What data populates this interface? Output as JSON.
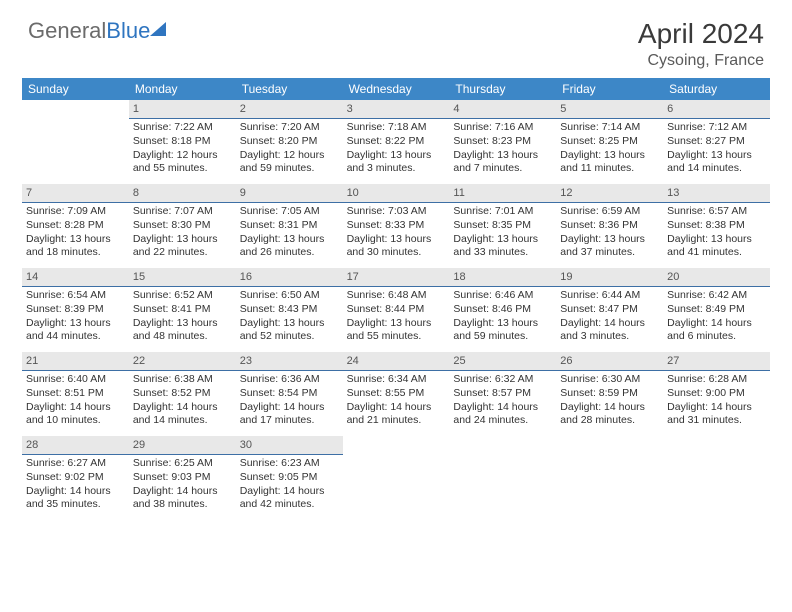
{
  "brand": {
    "part1": "General",
    "part2": "Blue"
  },
  "title": "April 2024",
  "location": "Cysoing, France",
  "colors": {
    "header_bg": "#3d87c7",
    "daynum_bg": "#e8e8e8",
    "daynum_border": "#3d6fa5",
    "text": "#333333",
    "brand_gray": "#6b6b6b",
    "brand_blue": "#2f75c0"
  },
  "weekdays": [
    "Sunday",
    "Monday",
    "Tuesday",
    "Wednesday",
    "Thursday",
    "Friday",
    "Saturday"
  ],
  "weeks": [
    [
      null,
      {
        "n": "1",
        "sr": "Sunrise: 7:22 AM",
        "ss": "Sunset: 8:18 PM",
        "d1": "Daylight: 12 hours",
        "d2": "and 55 minutes."
      },
      {
        "n": "2",
        "sr": "Sunrise: 7:20 AM",
        "ss": "Sunset: 8:20 PM",
        "d1": "Daylight: 12 hours",
        "d2": "and 59 minutes."
      },
      {
        "n": "3",
        "sr": "Sunrise: 7:18 AM",
        "ss": "Sunset: 8:22 PM",
        "d1": "Daylight: 13 hours",
        "d2": "and 3 minutes."
      },
      {
        "n": "4",
        "sr": "Sunrise: 7:16 AM",
        "ss": "Sunset: 8:23 PM",
        "d1": "Daylight: 13 hours",
        "d2": "and 7 minutes."
      },
      {
        "n": "5",
        "sr": "Sunrise: 7:14 AM",
        "ss": "Sunset: 8:25 PM",
        "d1": "Daylight: 13 hours",
        "d2": "and 11 minutes."
      },
      {
        "n": "6",
        "sr": "Sunrise: 7:12 AM",
        "ss": "Sunset: 8:27 PM",
        "d1": "Daylight: 13 hours",
        "d2": "and 14 minutes."
      }
    ],
    [
      {
        "n": "7",
        "sr": "Sunrise: 7:09 AM",
        "ss": "Sunset: 8:28 PM",
        "d1": "Daylight: 13 hours",
        "d2": "and 18 minutes."
      },
      {
        "n": "8",
        "sr": "Sunrise: 7:07 AM",
        "ss": "Sunset: 8:30 PM",
        "d1": "Daylight: 13 hours",
        "d2": "and 22 minutes."
      },
      {
        "n": "9",
        "sr": "Sunrise: 7:05 AM",
        "ss": "Sunset: 8:31 PM",
        "d1": "Daylight: 13 hours",
        "d2": "and 26 minutes."
      },
      {
        "n": "10",
        "sr": "Sunrise: 7:03 AM",
        "ss": "Sunset: 8:33 PM",
        "d1": "Daylight: 13 hours",
        "d2": "and 30 minutes."
      },
      {
        "n": "11",
        "sr": "Sunrise: 7:01 AM",
        "ss": "Sunset: 8:35 PM",
        "d1": "Daylight: 13 hours",
        "d2": "and 33 minutes."
      },
      {
        "n": "12",
        "sr": "Sunrise: 6:59 AM",
        "ss": "Sunset: 8:36 PM",
        "d1": "Daylight: 13 hours",
        "d2": "and 37 minutes."
      },
      {
        "n": "13",
        "sr": "Sunrise: 6:57 AM",
        "ss": "Sunset: 8:38 PM",
        "d1": "Daylight: 13 hours",
        "d2": "and 41 minutes."
      }
    ],
    [
      {
        "n": "14",
        "sr": "Sunrise: 6:54 AM",
        "ss": "Sunset: 8:39 PM",
        "d1": "Daylight: 13 hours",
        "d2": "and 44 minutes."
      },
      {
        "n": "15",
        "sr": "Sunrise: 6:52 AM",
        "ss": "Sunset: 8:41 PM",
        "d1": "Daylight: 13 hours",
        "d2": "and 48 minutes."
      },
      {
        "n": "16",
        "sr": "Sunrise: 6:50 AM",
        "ss": "Sunset: 8:43 PM",
        "d1": "Daylight: 13 hours",
        "d2": "and 52 minutes."
      },
      {
        "n": "17",
        "sr": "Sunrise: 6:48 AM",
        "ss": "Sunset: 8:44 PM",
        "d1": "Daylight: 13 hours",
        "d2": "and 55 minutes."
      },
      {
        "n": "18",
        "sr": "Sunrise: 6:46 AM",
        "ss": "Sunset: 8:46 PM",
        "d1": "Daylight: 13 hours",
        "d2": "and 59 minutes."
      },
      {
        "n": "19",
        "sr": "Sunrise: 6:44 AM",
        "ss": "Sunset: 8:47 PM",
        "d1": "Daylight: 14 hours",
        "d2": "and 3 minutes."
      },
      {
        "n": "20",
        "sr": "Sunrise: 6:42 AM",
        "ss": "Sunset: 8:49 PM",
        "d1": "Daylight: 14 hours",
        "d2": "and 6 minutes."
      }
    ],
    [
      {
        "n": "21",
        "sr": "Sunrise: 6:40 AM",
        "ss": "Sunset: 8:51 PM",
        "d1": "Daylight: 14 hours",
        "d2": "and 10 minutes."
      },
      {
        "n": "22",
        "sr": "Sunrise: 6:38 AM",
        "ss": "Sunset: 8:52 PM",
        "d1": "Daylight: 14 hours",
        "d2": "and 14 minutes."
      },
      {
        "n": "23",
        "sr": "Sunrise: 6:36 AM",
        "ss": "Sunset: 8:54 PM",
        "d1": "Daylight: 14 hours",
        "d2": "and 17 minutes."
      },
      {
        "n": "24",
        "sr": "Sunrise: 6:34 AM",
        "ss": "Sunset: 8:55 PM",
        "d1": "Daylight: 14 hours",
        "d2": "and 21 minutes."
      },
      {
        "n": "25",
        "sr": "Sunrise: 6:32 AM",
        "ss": "Sunset: 8:57 PM",
        "d1": "Daylight: 14 hours",
        "d2": "and 24 minutes."
      },
      {
        "n": "26",
        "sr": "Sunrise: 6:30 AM",
        "ss": "Sunset: 8:59 PM",
        "d1": "Daylight: 14 hours",
        "d2": "and 28 minutes."
      },
      {
        "n": "27",
        "sr": "Sunrise: 6:28 AM",
        "ss": "Sunset: 9:00 PM",
        "d1": "Daylight: 14 hours",
        "d2": "and 31 minutes."
      }
    ],
    [
      {
        "n": "28",
        "sr": "Sunrise: 6:27 AM",
        "ss": "Sunset: 9:02 PM",
        "d1": "Daylight: 14 hours",
        "d2": "and 35 minutes."
      },
      {
        "n": "29",
        "sr": "Sunrise: 6:25 AM",
        "ss": "Sunset: 9:03 PM",
        "d1": "Daylight: 14 hours",
        "d2": "and 38 minutes."
      },
      {
        "n": "30",
        "sr": "Sunrise: 6:23 AM",
        "ss": "Sunset: 9:05 PM",
        "d1": "Daylight: 14 hours",
        "d2": "and 42 minutes."
      },
      null,
      null,
      null,
      null
    ]
  ]
}
